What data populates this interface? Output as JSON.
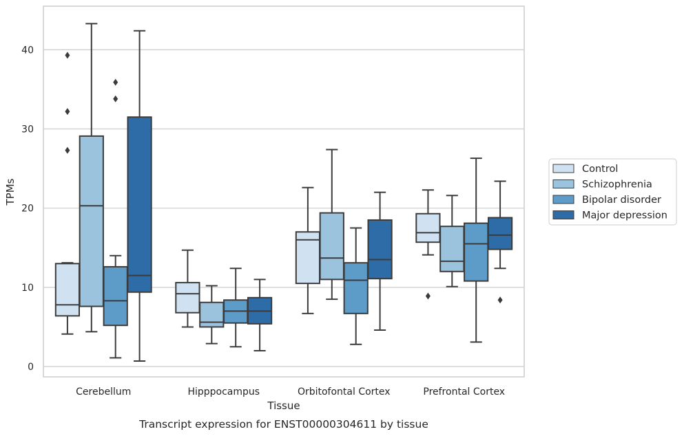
{
  "chart_data": {
    "type": "box",
    "title": "",
    "caption": "Transcript expression for ENST00000304611 by tissue",
    "xlabel": "Tissue",
    "ylabel": "TPMs",
    "ylim": [
      -1.3,
      45.5
    ],
    "yticks": [
      0,
      10,
      20,
      30,
      40
    ],
    "grid": "horizontal",
    "legend_position": "right",
    "categories": [
      "Cerebellum",
      "Hipppocampus",
      "Orbitofontal Cortex",
      "Prefrontal Cortex"
    ],
    "series": [
      {
        "name": "Control",
        "color": "#d0e1f1",
        "boxes": [
          {
            "whislo": 4.1,
            "q1": 6.4,
            "med": 7.8,
            "q3": 13.0,
            "whishi": 13.1,
            "fliers": [
              27.3,
              32.2,
              39.3
            ]
          },
          {
            "whislo": 5.0,
            "q1": 6.8,
            "med": 9.2,
            "q3": 10.6,
            "whishi": 14.7,
            "fliers": []
          },
          {
            "whislo": 6.7,
            "q1": 10.5,
            "med": 16.0,
            "q3": 17.0,
            "whishi": 22.6,
            "fliers": []
          },
          {
            "whislo": 14.1,
            "q1": 15.7,
            "med": 16.9,
            "q3": 19.3,
            "whishi": 22.3,
            "fliers": [
              8.9
            ]
          }
        ]
      },
      {
        "name": "Schizophrenia",
        "color": "#9bc3dd",
        "boxes": [
          {
            "whislo": 4.4,
            "q1": 7.6,
            "med": 20.3,
            "q3": 29.1,
            "whishi": 43.3,
            "fliers": []
          },
          {
            "whislo": 2.9,
            "q1": 5.0,
            "med": 5.6,
            "q3": 8.1,
            "whishi": 10.2,
            "fliers": []
          },
          {
            "whislo": 8.5,
            "q1": 11.0,
            "med": 13.7,
            "q3": 19.4,
            "whishi": 27.4,
            "fliers": []
          },
          {
            "whislo": 10.1,
            "q1": 12.0,
            "med": 13.3,
            "q3": 17.7,
            "whishi": 21.6,
            "fliers": []
          }
        ]
      },
      {
        "name": "Bipolar disorder",
        "color": "#5d9bc8",
        "boxes": [
          {
            "whislo": 1.1,
            "q1": 5.2,
            "med": 8.3,
            "q3": 12.6,
            "whishi": 14.0,
            "fliers": [
              33.8,
              35.9
            ]
          },
          {
            "whislo": 2.5,
            "q1": 5.5,
            "med": 7.0,
            "q3": 8.4,
            "whishi": 12.4,
            "fliers": []
          },
          {
            "whislo": 2.8,
            "q1": 6.7,
            "med": 10.9,
            "q3": 13.1,
            "whishi": 17.5,
            "fliers": []
          },
          {
            "whislo": 3.1,
            "q1": 10.8,
            "med": 15.5,
            "q3": 18.1,
            "whishi": 26.3,
            "fliers": []
          }
        ]
      },
      {
        "name": "Major depression",
        "color": "#2d6ca7",
        "boxes": [
          {
            "whislo": 0.7,
            "q1": 9.4,
            "med": 11.5,
            "q3": 31.5,
            "whishi": 42.4,
            "fliers": []
          },
          {
            "whislo": 2.0,
            "q1": 5.4,
            "med": 7.0,
            "q3": 8.7,
            "whishi": 11.0,
            "fliers": []
          },
          {
            "whislo": 4.6,
            "q1": 11.1,
            "med": 13.5,
            "q3": 18.5,
            "whishi": 22.0,
            "fliers": []
          },
          {
            "whislo": 12.4,
            "q1": 14.8,
            "med": 16.6,
            "q3": 18.8,
            "whishi": 23.4,
            "fliers": [
              8.4
            ]
          }
        ]
      }
    ]
  },
  "colors": {
    "grid": "#cccccc",
    "frame": "#cccccc",
    "box_line": "#3b3b3b",
    "legend_border": "#cccccc"
  }
}
